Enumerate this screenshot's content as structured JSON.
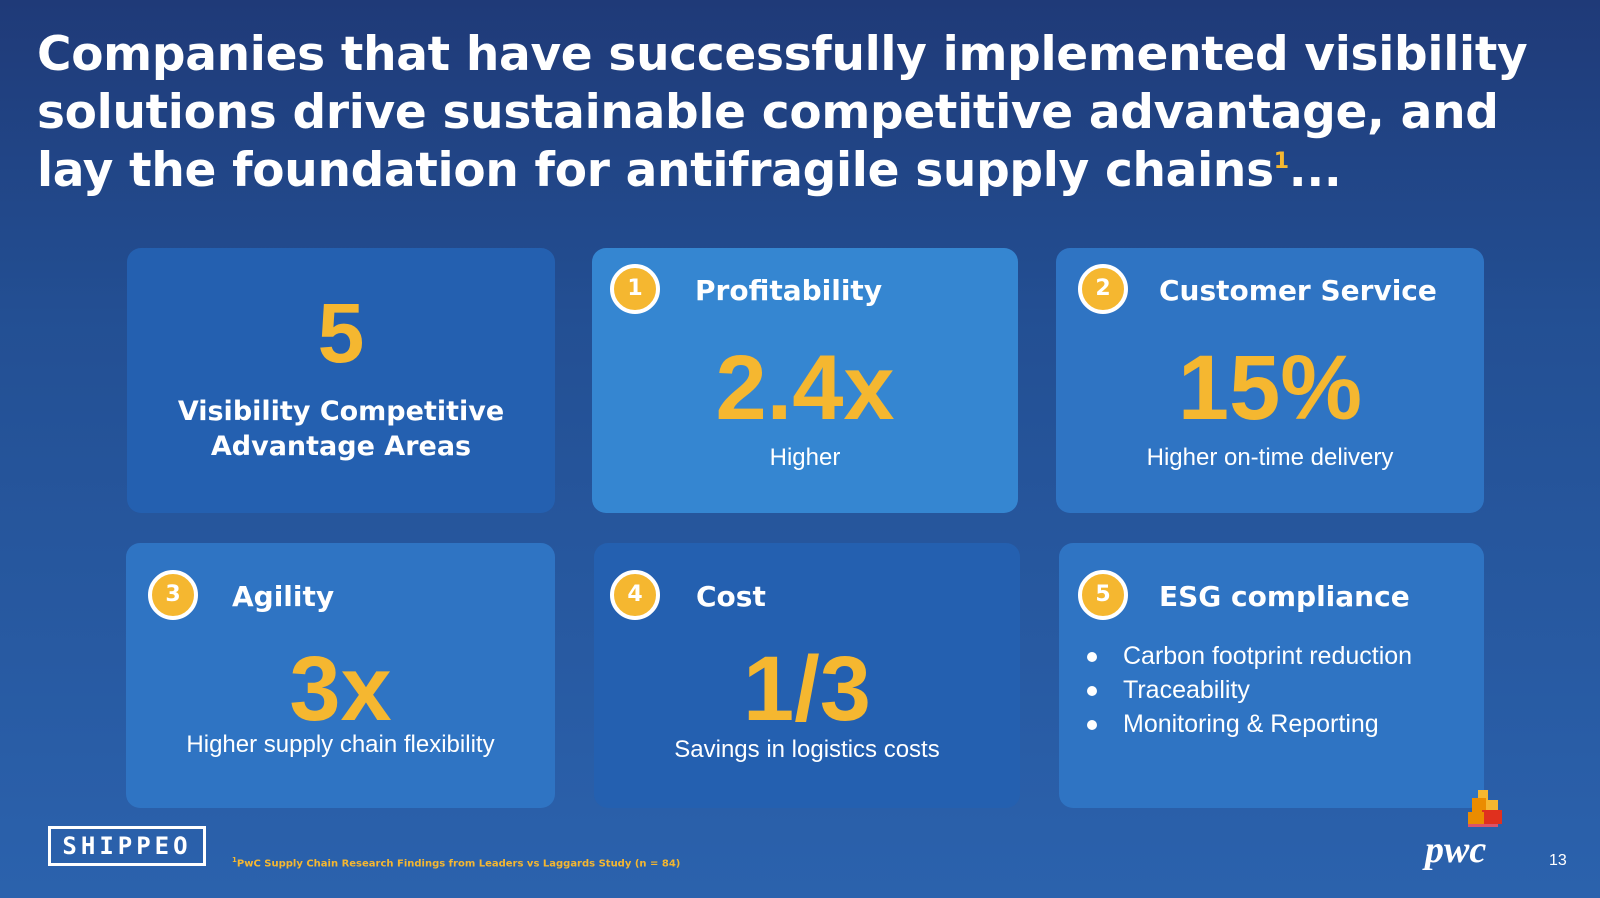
{
  "headline": {
    "text": "Companies that have successfully implemented visibility solutions drive sustainable competitive advantage, and lay the foundation for antifragile supply chains",
    "footnote_marker": "1",
    "ellipsis": "..."
  },
  "cards": {
    "intro": {
      "big": "5",
      "text": "Visibility Competitive Advantage Areas"
    },
    "profitability": {
      "number": "1",
      "title": "Profitability",
      "big": "2.4x",
      "sub": "Higher"
    },
    "customer_service": {
      "number": "2",
      "title": "Customer Service",
      "big": "15%",
      "sub": "Higher on-time delivery"
    },
    "agility": {
      "number": "3",
      "title": "Agility",
      "big": "3x",
      "sub": "Higher supply chain flexibility"
    },
    "cost": {
      "number": "4",
      "title": "Cost",
      "big": "1/3",
      "sub": "Savings in logistics costs"
    },
    "esg": {
      "number": "5",
      "title": "ESG compliance",
      "bullets": [
        "Carbon footprint reduction",
        "Traceability",
        "Monitoring & Reporting"
      ]
    }
  },
  "footer": {
    "brand_logo": "SHIPPEO",
    "footnote_marker": "1",
    "footnote": "PwC Supply Chain Research Findings from Leaders vs Laggards Study (n = 84)",
    "partner_logo": "pwc",
    "page_number": "13"
  },
  "colors": {
    "accent": "#f5b730",
    "card_dark": "#2460b0",
    "card_light": "#3586d1",
    "background_top": "#1f3a78"
  }
}
